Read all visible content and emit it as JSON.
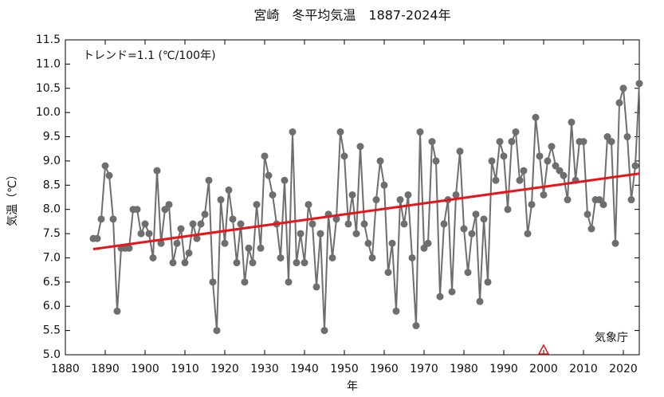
{
  "chart_data": {
    "type": "line",
    "title": "宮崎　冬平均気温　1887-2024年",
    "xlabel": "年",
    "ylabel": "気温（℃）",
    "annotations": [
      "トレンド=1.1 (℃/100年)",
      "気象庁"
    ],
    "marker_x": 2000,
    "xlim": [
      1880,
      2024
    ],
    "ylim": [
      5.0,
      11.5
    ],
    "xticks": [
      1880,
      1890,
      1900,
      1910,
      1920,
      1930,
      1940,
      1950,
      1960,
      1970,
      1980,
      1990,
      2000,
      2010,
      2020
    ],
    "yticks": [
      {
        "value": 5.0,
        "label": "5.0"
      },
      5.5,
      {
        "value": 6.0,
        "label": "6.0"
      },
      6.5,
      {
        "value": 7.0,
        "label": "7.0"
      },
      7.5,
      {
        "value": 8.0,
        "label": "8.0"
      },
      8.5,
      {
        "value": 9.0,
        "label": "9.0"
      },
      9.5,
      {
        "value": 10.0,
        "label": "10.0"
      },
      10.5,
      {
        "value": 11.0,
        "label": "11.0"
      },
      11.5
    ],
    "x": [
      1887,
      1888,
      1889,
      1890,
      1891,
      1892,
      1893,
      1894,
      1895,
      1896,
      1897,
      1898,
      1899,
      1900,
      1901,
      1902,
      1903,
      1904,
      1905,
      1906,
      1907,
      1908,
      1909,
      1910,
      1911,
      1912,
      1913,
      1914,
      1915,
      1916,
      1917,
      1918,
      1919,
      1920,
      1921,
      1922,
      1923,
      1924,
      1925,
      1926,
      1927,
      1928,
      1929,
      1930,
      1931,
      1932,
      1933,
      1934,
      1935,
      1936,
      1937,
      1938,
      1939,
      1940,
      1941,
      1942,
      1943,
      1944,
      1945,
      1946,
      1947,
      1948,
      1949,
      1950,
      1951,
      1952,
      1953,
      1954,
      1955,
      1956,
      1957,
      1958,
      1959,
      1960,
      1961,
      1962,
      1963,
      1964,
      1965,
      1966,
      1967,
      1968,
      1969,
      1970,
      1971,
      1972,
      1973,
      1974,
      1975,
      1976,
      1977,
      1978,
      1979,
      1980,
      1981,
      1982,
      1983,
      1984,
      1985,
      1986,
      1987,
      1988,
      1989,
      1990,
      1991,
      1992,
      1993,
      1994,
      1995,
      1996,
      1997,
      1998,
      1999,
      2000,
      2001,
      2002,
      2003,
      2004,
      2005,
      2006,
      2007,
      2008,
      2009,
      2010,
      2011,
      2012,
      2013,
      2014,
      2015,
      2016,
      2017,
      2018,
      2019,
      2020,
      2021,
      2022,
      2023,
      2024
    ],
    "series": [
      {
        "color": "#6e6e6e",
        "values": [
          7.4,
          7.4,
          7.8,
          8.9,
          8.7,
          7.8,
          5.9,
          7.2,
          7.2,
          7.2,
          8.0,
          8.0,
          7.5,
          7.7,
          7.5,
          7.0,
          8.8,
          7.3,
          8.0,
          8.1,
          6.9,
          7.3,
          7.6,
          6.9,
          7.1,
          7.7,
          7.4,
          7.7,
          7.9,
          8.6,
          6.5,
          5.5,
          8.2,
          7.3,
          8.4,
          7.8,
          6.9,
          7.7,
          6.5,
          7.2,
          6.9,
          8.1,
          7.2,
          9.1,
          8.7,
          8.3,
          7.7,
          7.0,
          8.6,
          6.5,
          9.6,
          6.9,
          7.5,
          6.9,
          8.1,
          7.7,
          6.4,
          7.5,
          5.5,
          7.9,
          7.0,
          7.8,
          9.6,
          9.1,
          7.7,
          8.3,
          7.5,
          9.3,
          7.7,
          7.3,
          7.0,
          8.2,
          9.0,
          8.5,
          6.7,
          7.3,
          5.9,
          8.2,
          7.7,
          8.3,
          7.0,
          5.6,
          9.6,
          7.2,
          7.3,
          9.4,
          9.0,
          6.2,
          7.7,
          8.2,
          6.3,
          8.3,
          9.2,
          7.6,
          6.7,
          7.5,
          7.9,
          6.1,
          7.8,
          6.5,
          9.0,
          8.6,
          9.4,
          9.1,
          8.0,
          9.4,
          9.6,
          8.6,
          8.8,
          7.5,
          8.1,
          9.9,
          9.1,
          8.3,
          9.0,
          9.3,
          8.9,
          8.8,
          8.7,
          8.2,
          9.8,
          8.6,
          9.4,
          9.4,
          7.9,
          7.6,
          8.2,
          8.2,
          8.1,
          9.5,
          9.4,
          7.3,
          10.2,
          10.5,
          9.5,
          8.2,
          8.9,
          10.6
        ]
      }
    ],
    "trend": {
      "color": "#e8141a",
      "x": [
        1887,
        2024
      ],
      "values": [
        7.18,
        8.74
      ]
    }
  }
}
